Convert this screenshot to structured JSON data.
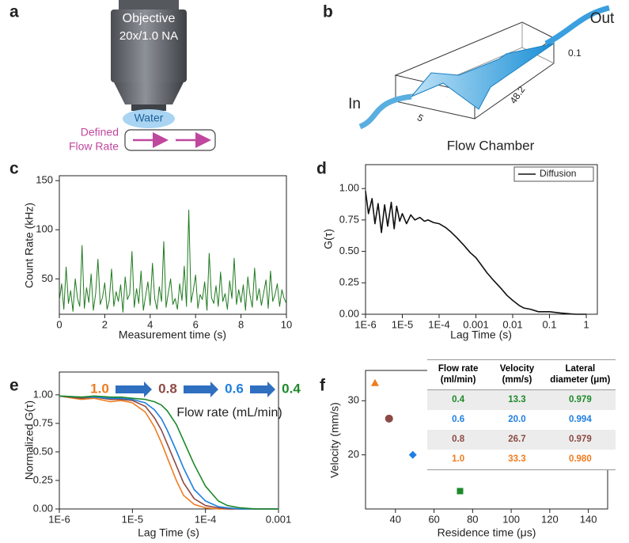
{
  "panel_labels": [
    "a",
    "b",
    "c",
    "d",
    "e",
    "f"
  ],
  "diagram_a": {
    "objective": "Objective",
    "spec": "20x/1.0 NA",
    "medium": "Water",
    "flow_label": [
      "Defined",
      "Flow Rate"
    ]
  },
  "diagram_b": {
    "title": "Flow Chamber",
    "inlet": "In",
    "outlet": "Out",
    "dims": [
      "0.1",
      "48.2",
      "5"
    ]
  },
  "chart_data": [
    {
      "type": "line",
      "xlabel": "Measurement time (s)",
      "ylabel": "Count Rate (kHz)",
      "color": "#1f7a1f",
      "x": [
        0,
        0.1,
        0.2,
        0.3,
        0.4,
        0.5,
        0.6,
        0.7,
        0.8,
        0.9,
        1,
        1.1,
        1.2,
        1.3,
        1.4,
        1.5,
        1.6,
        1.7,
        1.8,
        1.9,
        2,
        2.1,
        2.2,
        2.3,
        2.4,
        2.5,
        2.6,
        2.7,
        2.8,
        2.9,
        3,
        3.1,
        3.2,
        3.3,
        3.4,
        3.5,
        3.6,
        3.7,
        3.8,
        3.9,
        4,
        4.1,
        4.2,
        4.3,
        4.4,
        4.5,
        4.6,
        4.7,
        4.8,
        4.9,
        5,
        5.1,
        5.2,
        5.3,
        5.4,
        5.5,
        5.6,
        5.7,
        5.8,
        5.9,
        6,
        6.1,
        6.2,
        6.3,
        6.4,
        6.5,
        6.6,
        6.7,
        6.8,
        6.9,
        7,
        7.1,
        7.2,
        7.3,
        7.4,
        7.5,
        7.6,
        7.7,
        7.8,
        7.9,
        8,
        8.1,
        8.2,
        8.3,
        8.4,
        8.5,
        8.6,
        8.7,
        8.8,
        8.9,
        9,
        9.1,
        9.2,
        9.3,
        9.4,
        9.5,
        9.6,
        9.7,
        9.8,
        9.9,
        10
      ],
      "values": [
        28,
        45,
        19,
        62,
        25,
        38,
        17,
        50,
        30,
        22,
        84,
        20,
        41,
        26,
        55,
        18,
        35,
        70,
        24,
        31,
        46,
        19,
        28,
        60,
        22,
        37,
        27,
        44,
        16,
        52,
        29,
        35,
        78,
        21,
        40,
        25,
        58,
        18,
        33,
        47,
        23,
        66,
        30,
        19,
        42,
        27,
        88,
        21,
        36,
        50,
        24,
        30,
        19,
        45,
        28,
        63,
        22,
        120,
        26,
        38,
        54,
        20,
        34,
        29,
        47,
        18,
        76,
        31,
        25,
        43,
        22,
        57,
        27,
        35,
        19,
        48,
        30,
        71,
        24,
        39,
        26,
        44,
        18,
        52,
        33,
        21,
        61,
        28,
        40,
        23,
        36,
        49,
        20,
        58,
        27,
        34,
        45,
        22,
        39,
        30,
        25
      ],
      "xlim": [
        0,
        10
      ],
      "ylim": [
        14,
        155
      ],
      "xticks": [
        0,
        2,
        4,
        6,
        8,
        10
      ],
      "yticks": [
        50,
        100,
        150
      ]
    },
    {
      "type": "line",
      "xlabel": "Lag Time (s)",
      "ylabel": "G(τ)",
      "xscale": "log",
      "legend": "upper right",
      "x": [
        1e-06,
        1.2e-06,
        1.5e-06,
        1.8e-06,
        2.2e-06,
        2.7e-06,
        3.3e-06,
        4e-06,
        5e-06,
        6e-06,
        7e-06,
        8.5e-06,
        1e-05,
        1.3e-05,
        1.7e-05,
        2.2e-05,
        3e-05,
        4e-05,
        5e-05,
        7e-05,
        0.0001,
        0.00015,
        0.0002,
        0.0003,
        0.0005,
        0.0007,
        0.001,
        0.0015,
        0.002,
        0.003,
        0.005,
        0.007,
        0.01,
        0.015,
        0.02,
        0.03,
        0.05,
        0.1,
        0.2,
        0.5,
        1
      ],
      "series": [
        {
          "name": "Diffusion",
          "color": "#111111",
          "values": [
            0.98,
            0.8,
            0.92,
            0.72,
            0.88,
            0.65,
            0.87,
            0.7,
            0.89,
            0.68,
            0.86,
            0.74,
            0.8,
            0.72,
            0.79,
            0.75,
            0.77,
            0.74,
            0.75,
            0.73,
            0.72,
            0.69,
            0.66,
            0.61,
            0.54,
            0.49,
            0.45,
            0.38,
            0.33,
            0.27,
            0.2,
            0.15,
            0.11,
            0.07,
            0.05,
            0.04,
            0.02,
            0.02,
            0.01,
            0.0,
            0.0
          ]
        }
      ],
      "xlim": [
        1e-06,
        2
      ],
      "ylim": [
        0,
        1.19
      ],
      "xticks": [
        {
          "value": 1e-06,
          "label": "1E-6"
        },
        {
          "value": 1e-05,
          "label": "1E-5"
        },
        {
          "value": 0.0001,
          "label": "1E-4"
        },
        0.001,
        0.01,
        0.1,
        1
      ],
      "yticks": [
        {
          "value": 0,
          "label": "0.00"
        },
        0.25,
        {
          "value": 0.5,
          "label": "0.50"
        },
        0.75,
        {
          "value": 1,
          "label": "1.00"
        }
      ]
    },
    {
      "type": "line",
      "xlabel": "Lag Time (s)",
      "ylabel": "Normalized G(τ)",
      "xscale": "log",
      "flow_sequence": [
        "1.0",
        "0.8",
        "0.6",
        "0.4"
      ],
      "annotation": "Flow rate (mL/min)",
      "x": [
        1e-06,
        2e-06,
        3e-06,
        5e-06,
        7e-06,
        1e-05,
        1.5e-05,
        2e-05,
        2.5e-05,
        3e-05,
        4e-05,
        5e-05,
        7e-05,
        0.0001,
        0.00015,
        0.0002,
        0.0003,
        0.0005,
        0.001
      ],
      "series": [
        {
          "color": "#f07c1e",
          "values": [
            0.99,
            0.96,
            0.97,
            0.94,
            0.95,
            0.93,
            0.85,
            0.72,
            0.58,
            0.45,
            0.25,
            0.12,
            0.04,
            0.01,
            0.0,
            0.0,
            0.0,
            0.0,
            0.0
          ]
        },
        {
          "color": "#8c4a44",
          "values": [
            0.99,
            0.97,
            0.98,
            0.96,
            0.96,
            0.95,
            0.9,
            0.8,
            0.69,
            0.57,
            0.38,
            0.23,
            0.09,
            0.03,
            0.01,
            0.0,
            0.0,
            0.0,
            0.0
          ]
        },
        {
          "color": "#1f7fe0",
          "values": [
            0.99,
            0.98,
            0.98,
            0.97,
            0.97,
            0.96,
            0.93,
            0.87,
            0.79,
            0.69,
            0.51,
            0.36,
            0.17,
            0.07,
            0.02,
            0.01,
            0.0,
            0.0,
            0.0
          ]
        },
        {
          "color": "#1d8a2a",
          "values": [
            0.99,
            0.98,
            0.99,
            0.98,
            0.98,
            0.97,
            0.96,
            0.94,
            0.91,
            0.86,
            0.74,
            0.6,
            0.39,
            0.2,
            0.07,
            0.03,
            0.01,
            0.0,
            0.0
          ]
        }
      ],
      "xlim": [
        1e-06,
        0.001
      ],
      "ylim": [
        0,
        1.2
      ],
      "xticks": [
        {
          "value": 1e-06,
          "label": "1E-6"
        },
        {
          "value": 1e-05,
          "label": "1E-5"
        },
        {
          "value": 0.0001,
          "label": "1E-4"
        },
        0.001
      ],
      "yticks": [
        {
          "value": 0,
          "label": "0.00"
        },
        0.25,
        {
          "value": 0.5,
          "label": "0.50"
        },
        0.75,
        {
          "value": 1,
          "label": "1.00"
        }
      ]
    },
    {
      "type": "scatter",
      "xlabel": "Residence time (μs)",
      "ylabel": "Velocity (mm/s)",
      "x": [
        29.4,
        36.7,
        49.0,
        73.5
      ],
      "values": [
        33.3,
        26.7,
        20.0,
        13.3
      ],
      "markers": [
        "triangle",
        "circle",
        "diamond",
        "square"
      ],
      "colors": [
        "#f07c1e",
        "#8c4a44",
        "#1f7fe0",
        "#1d8a2a"
      ],
      "xlim": [
        24.5,
        150
      ],
      "ylim": [
        10,
        35.6
      ],
      "xticks": [
        40,
        60,
        80,
        100,
        120,
        140
      ],
      "yticks": [
        20,
        30
      ]
    }
  ],
  "table_f": {
    "header": [
      "Flow rate (ml/min)",
      "Velocity (mm/s)",
      "Lateral diameter (μm)"
    ],
    "rows": [
      [
        "0.4",
        "13.3",
        "0.979"
      ],
      [
        "0.6",
        "20.0",
        "0.994"
      ],
      [
        "0.8",
        "26.7",
        "0.979"
      ],
      [
        "1.0",
        "33.3",
        "0.980"
      ]
    ],
    "row_colors": [
      "#1d8a2a",
      "#1f7fe0",
      "#8c4a44",
      "#f07c1e"
    ]
  }
}
